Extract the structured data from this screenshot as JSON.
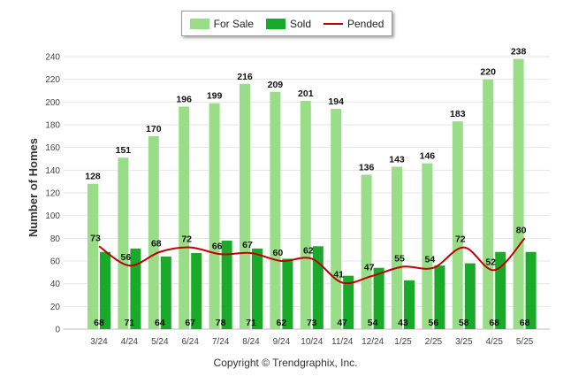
{
  "chart_data": {
    "type": "bar",
    "categories": [
      "3/24",
      "4/24",
      "5/24",
      "6/24",
      "7/24",
      "8/24",
      "9/24",
      "10/24",
      "11/24",
      "12/24",
      "1/25",
      "2/25",
      "3/25",
      "4/25",
      "5/25"
    ],
    "series": [
      {
        "name": "For Sale",
        "type": "bar",
        "color": "#99dd88",
        "values": [
          128,
          151,
          170,
          196,
          199,
          216,
          209,
          201,
          194,
          136,
          143,
          146,
          183,
          220,
          238
        ]
      },
      {
        "name": "Sold",
        "type": "bar",
        "color": "#1aaa2a",
        "values": [
          68,
          71,
          64,
          67,
          78,
          71,
          62,
          73,
          47,
          54,
          43,
          56,
          58,
          68,
          68
        ]
      },
      {
        "name": "Pended",
        "type": "line",
        "color": "#c00000",
        "values": [
          73,
          56,
          68,
          72,
          66,
          67,
          60,
          62,
          41,
          47,
          55,
          54,
          72,
          52,
          80
        ]
      }
    ],
    "ylabel": "Number of Homes",
    "xlabel": "",
    "ylim": [
      0,
      240
    ],
    "yticks": [
      0,
      20,
      40,
      60,
      80,
      100,
      120,
      140,
      160,
      180,
      200,
      220,
      240
    ],
    "grid": true,
    "legend_position": "top-center"
  },
  "copyright": "Copyright © Trendgraphix, Inc."
}
